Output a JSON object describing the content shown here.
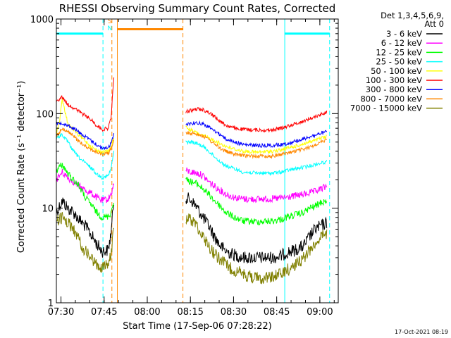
{
  "chart_data": {
    "type": "line",
    "title": "RHESSI Observing Summary Count Rates, Corrected",
    "xlabel": "Start Time (17-Sep-06 07:28:22)",
    "ylabel": "Corrected Count Rate (s⁻¹ detector⁻¹)",
    "y_scale": "log",
    "ylim": [
      1,
      1000
    ],
    "xlim_minutes": [
      0,
      98
    ],
    "x_ticks": [
      {
        "minutes": 1.6,
        "label": "07:30"
      },
      {
        "minutes": 16.6,
        "label": "07:45"
      },
      {
        "minutes": 31.6,
        "label": "08:00"
      },
      {
        "minutes": 46.6,
        "label": "08:15"
      },
      {
        "minutes": 61.6,
        "label": "08:30"
      },
      {
        "minutes": 76.6,
        "label": "08:45"
      },
      {
        "minutes": 91.6,
        "label": "09:00"
      }
    ],
    "y_ticks": [
      {
        "value": 1,
        "label": "1"
      },
      {
        "value": 10,
        "label": "10"
      },
      {
        "value": 100,
        "label": "100"
      },
      {
        "value": 1000,
        "label": "1000"
      }
    ],
    "legend": {
      "position": "top-right",
      "header": [
        "Det 1,3,4,5,6,9,",
        "Att 0"
      ]
    },
    "series": [
      {
        "name": "3 - 6 keV",
        "color": "#000000",
        "seg1": [
          [
            0,
            9
          ],
          [
            2,
            12
          ],
          [
            4,
            10
          ],
          [
            6,
            9
          ],
          [
            8,
            7.5
          ],
          [
            10,
            6.5
          ],
          [
            12,
            5.3
          ],
          [
            14,
            4.2
          ],
          [
            16,
            3.5
          ],
          [
            18,
            3.6
          ],
          [
            19,
            5.4
          ],
          [
            20,
            12
          ]
        ],
        "seg2": [
          [
            45,
            13
          ],
          [
            47,
            12
          ],
          [
            49,
            10
          ],
          [
            51,
            8
          ],
          [
            53,
            6.5
          ],
          [
            55,
            5
          ],
          [
            57,
            4
          ],
          [
            59,
            3.5
          ],
          [
            62,
            3.2
          ],
          [
            65,
            3
          ],
          [
            70,
            3
          ],
          [
            75,
            3
          ],
          [
            78,
            3.1
          ],
          [
            80,
            3.4
          ],
          [
            83,
            3.6
          ],
          [
            86,
            4
          ],
          [
            88,
            5
          ],
          [
            90,
            6
          ],
          [
            92,
            6.5
          ],
          [
            94,
            7
          ]
        ]
      },
      {
        "name": "6 - 12 keV",
        "color": "#ff00ff",
        "seg1": [
          [
            0,
            20
          ],
          [
            2,
            24
          ],
          [
            4,
            21
          ],
          [
            6,
            19
          ],
          [
            8,
            17
          ],
          [
            10,
            15.5
          ],
          [
            12,
            14.5
          ],
          [
            14,
            13
          ],
          [
            16,
            12
          ],
          [
            18,
            12.5
          ],
          [
            19,
            14
          ],
          [
            20,
            18
          ]
        ],
        "seg2": [
          [
            45,
            25
          ],
          [
            47,
            24
          ],
          [
            49,
            23.5
          ],
          [
            51,
            22
          ],
          [
            53,
            19
          ],
          [
            55,
            17
          ],
          [
            57,
            15.5
          ],
          [
            59,
            14
          ],
          [
            62,
            13
          ],
          [
            65,
            12.5
          ],
          [
            70,
            12.5
          ],
          [
            75,
            12.5
          ],
          [
            78,
            12.8
          ],
          [
            80,
            13
          ],
          [
            83,
            13.5
          ],
          [
            86,
            14
          ],
          [
            88,
            14.5
          ],
          [
            90,
            15
          ],
          [
            92,
            16
          ],
          [
            94,
            17
          ]
        ]
      },
      {
        "name": "12 - 25 keV",
        "color": "#00ff00",
        "seg1": [
          [
            0,
            25
          ],
          [
            2,
            29
          ],
          [
            4,
            23
          ],
          [
            6,
            20
          ],
          [
            8,
            17
          ],
          [
            10,
            13
          ],
          [
            12,
            11
          ],
          [
            14,
            9
          ],
          [
            16,
            8
          ],
          [
            18,
            8.2
          ],
          [
            19,
            9
          ],
          [
            20,
            12
          ]
        ],
        "seg2": [
          [
            45,
            20
          ],
          [
            47,
            19
          ],
          [
            49,
            18
          ],
          [
            51,
            16
          ],
          [
            53,
            14
          ],
          [
            55,
            12
          ],
          [
            57,
            10.5
          ],
          [
            59,
            9
          ],
          [
            62,
            8
          ],
          [
            65,
            7.3
          ],
          [
            70,
            7.2
          ],
          [
            75,
            7.3
          ],
          [
            78,
            7.6
          ],
          [
            80,
            8
          ],
          [
            83,
            8.5
          ],
          [
            86,
            9
          ],
          [
            88,
            10
          ],
          [
            90,
            10.5
          ],
          [
            92,
            11.5
          ],
          [
            94,
            12
          ]
        ]
      },
      {
        "name": "25 - 50 keV",
        "color": "#00ffff",
        "seg1": [
          [
            0,
            55
          ],
          [
            2,
            60
          ],
          [
            4,
            50
          ],
          [
            6,
            40
          ],
          [
            8,
            34
          ],
          [
            10,
            30
          ],
          [
            12,
            27
          ],
          [
            14,
            23
          ],
          [
            16,
            21
          ],
          [
            18,
            22
          ],
          [
            19,
            26
          ],
          [
            20,
            40
          ]
        ],
        "seg2": [
          [
            45,
            50
          ],
          [
            47,
            50
          ],
          [
            49,
            48
          ],
          [
            51,
            45
          ],
          [
            53,
            40
          ],
          [
            55,
            35
          ],
          [
            57,
            31
          ],
          [
            59,
            28
          ],
          [
            62,
            26
          ],
          [
            65,
            24
          ],
          [
            70,
            23.5
          ],
          [
            75,
            23.5
          ],
          [
            78,
            24
          ],
          [
            80,
            25
          ],
          [
            83,
            26
          ],
          [
            86,
            27
          ],
          [
            88,
            28
          ],
          [
            90,
            29
          ],
          [
            92,
            30
          ],
          [
            94,
            31
          ]
        ]
      },
      {
        "name": "50 - 100 keV",
        "color": "#ffff00",
        "seg1": [
          [
            0,
            62
          ],
          [
            1,
            80
          ],
          [
            2,
            140
          ],
          [
            3,
            105
          ],
          [
            4,
            78
          ],
          [
            6,
            68
          ],
          [
            8,
            58
          ],
          [
            10,
            52
          ],
          [
            12,
            45
          ],
          [
            14,
            41
          ],
          [
            16,
            39
          ],
          [
            18,
            40
          ],
          [
            19,
            44
          ],
          [
            20,
            55
          ]
        ],
        "seg2": [
          [
            45,
            72
          ],
          [
            47,
            66
          ],
          [
            49,
            62
          ],
          [
            51,
            58
          ],
          [
            53,
            55
          ],
          [
            55,
            52
          ],
          [
            57,
            48
          ],
          [
            59,
            45
          ],
          [
            62,
            42
          ],
          [
            65,
            40
          ],
          [
            70,
            39
          ],
          [
            75,
            40
          ],
          [
            78,
            41
          ],
          [
            80,
            43
          ],
          [
            83,
            45
          ],
          [
            86,
            48
          ],
          [
            88,
            50
          ],
          [
            90,
            52
          ],
          [
            92,
            55
          ],
          [
            94,
            57
          ]
        ]
      },
      {
        "name": "100 - 300 keV",
        "color": "#ff0000",
        "seg1": [
          [
            0,
            135
          ],
          [
            2,
            150
          ],
          [
            4,
            125
          ],
          [
            6,
            115
          ],
          [
            8,
            105
          ],
          [
            10,
            95
          ],
          [
            12,
            87
          ],
          [
            14,
            75
          ],
          [
            16,
            68
          ],
          [
            18,
            70
          ],
          [
            19,
            90
          ],
          [
            20,
            240
          ]
        ],
        "seg2": [
          [
            45,
            105
          ],
          [
            47,
            108
          ],
          [
            49,
            112
          ],
          [
            51,
            110
          ],
          [
            53,
            103
          ],
          [
            55,
            93
          ],
          [
            57,
            83
          ],
          [
            59,
            75
          ],
          [
            62,
            70
          ],
          [
            65,
            68
          ],
          [
            70,
            67
          ],
          [
            75,
            67
          ],
          [
            78,
            70
          ],
          [
            80,
            73
          ],
          [
            83,
            78
          ],
          [
            86,
            83
          ],
          [
            88,
            88
          ],
          [
            90,
            93
          ],
          [
            92,
            98
          ],
          [
            94,
            105
          ]
        ]
      },
      {
        "name": "300 - 800 keV",
        "color": "#0000ff",
        "seg1": [
          [
            0,
            78
          ],
          [
            2,
            80
          ],
          [
            4,
            75
          ],
          [
            6,
            70
          ],
          [
            8,
            63
          ],
          [
            10,
            57
          ],
          [
            12,
            52
          ],
          [
            14,
            47
          ],
          [
            16,
            43
          ],
          [
            18,
            44
          ],
          [
            19,
            48
          ],
          [
            20,
            60
          ]
        ],
        "seg2": [
          [
            45,
            78
          ],
          [
            47,
            79
          ],
          [
            49,
            80
          ],
          [
            51,
            78
          ],
          [
            53,
            72
          ],
          [
            55,
            66
          ],
          [
            57,
            60
          ],
          [
            59,
            54
          ],
          [
            62,
            50
          ],
          [
            65,
            47
          ],
          [
            70,
            46
          ],
          [
            75,
            46
          ],
          [
            78,
            47
          ],
          [
            80,
            48
          ],
          [
            83,
            51
          ],
          [
            86,
            54
          ],
          [
            88,
            57
          ],
          [
            90,
            59
          ],
          [
            92,
            62
          ],
          [
            94,
            64
          ]
        ]
      },
      {
        "name": "800 - 7000 keV",
        "color": "#ff8800",
        "seg1": [
          [
            0,
            58
          ],
          [
            2,
            68
          ],
          [
            4,
            64
          ],
          [
            6,
            58
          ],
          [
            8,
            50
          ],
          [
            10,
            46
          ],
          [
            12,
            42
          ],
          [
            14,
            39
          ],
          [
            16,
            37
          ],
          [
            18,
            38
          ],
          [
            19,
            42
          ],
          [
            20,
            52
          ]
        ],
        "seg2": [
          [
            45,
            62
          ],
          [
            47,
            62
          ],
          [
            49,
            61
          ],
          [
            51,
            58
          ],
          [
            53,
            53
          ],
          [
            55,
            48
          ],
          [
            57,
            43
          ],
          [
            59,
            40
          ],
          [
            62,
            37
          ],
          [
            65,
            36
          ],
          [
            70,
            35.5
          ],
          [
            75,
            35.5
          ],
          [
            78,
            37
          ],
          [
            80,
            38
          ],
          [
            83,
            40
          ],
          [
            86,
            42
          ],
          [
            88,
            44
          ],
          [
            90,
            47
          ],
          [
            92,
            50
          ],
          [
            94,
            53
          ]
        ]
      },
      {
        "name": "7000 - 15000 keV",
        "color": "#808000",
        "seg1": [
          [
            0,
            7.5
          ],
          [
            2,
            8
          ],
          [
            4,
            7
          ],
          [
            6,
            6
          ],
          [
            8,
            4.5
          ],
          [
            10,
            3.5
          ],
          [
            12,
            3
          ],
          [
            14,
            2.5
          ],
          [
            16,
            2.4
          ],
          [
            18,
            2.5
          ],
          [
            19,
            3.2
          ],
          [
            20,
            6
          ]
        ],
        "seg2": [
          [
            45,
            8
          ],
          [
            47,
            7.5
          ],
          [
            49,
            6.5
          ],
          [
            51,
            5
          ],
          [
            53,
            4
          ],
          [
            55,
            3.3
          ],
          [
            57,
            2.9
          ],
          [
            59,
            2.5
          ],
          [
            62,
            2.2
          ],
          [
            65,
            2
          ],
          [
            70,
            1.8
          ],
          [
            75,
            1.9
          ],
          [
            78,
            2
          ],
          [
            80,
            2.2
          ],
          [
            83,
            2.5
          ],
          [
            86,
            3
          ],
          [
            88,
            3.6
          ],
          [
            90,
            4.3
          ],
          [
            92,
            5
          ],
          [
            94,
            5.3
          ]
        ]
      }
    ],
    "flag_lines": [
      {
        "kind": "solid",
        "color": "#00ffff",
        "x": 0
      },
      {
        "kind": "dashed",
        "color": "#00ffff",
        "x": 16.2
      },
      {
        "kind": "dashed",
        "color": "#ff8800",
        "x": 19.3
      },
      {
        "kind": "solid",
        "color": "#ff8800",
        "x": 21.2
      },
      {
        "kind": "dashed",
        "color": "#ff8800",
        "x": 44.0
      },
      {
        "kind": "solid",
        "color": "#00ffff",
        "x": 79.4
      },
      {
        "kind": "dashed",
        "color": "#00ffff",
        "x": 95.0
      }
    ],
    "flag_bars": [
      {
        "color": "#00ffff",
        "x0": 0,
        "x1": 16.2,
        "y": 700
      },
      {
        "color": "#ff8800",
        "x0": 21.2,
        "x1": 44.0,
        "y": 780
      },
      {
        "color": "#00ffff",
        "x0": 79.4,
        "x1": 95.0,
        "y": 700
      }
    ],
    "flag_markers": [
      {
        "text": "S",
        "color": "#ff8800",
        "x": 18.6,
        "y": 900
      },
      {
        "text": "N",
        "color": "#00ffff",
        "x": 18.6,
        "y": 760
      }
    ]
  },
  "footer_date": "17-Oct-2021 08:19"
}
